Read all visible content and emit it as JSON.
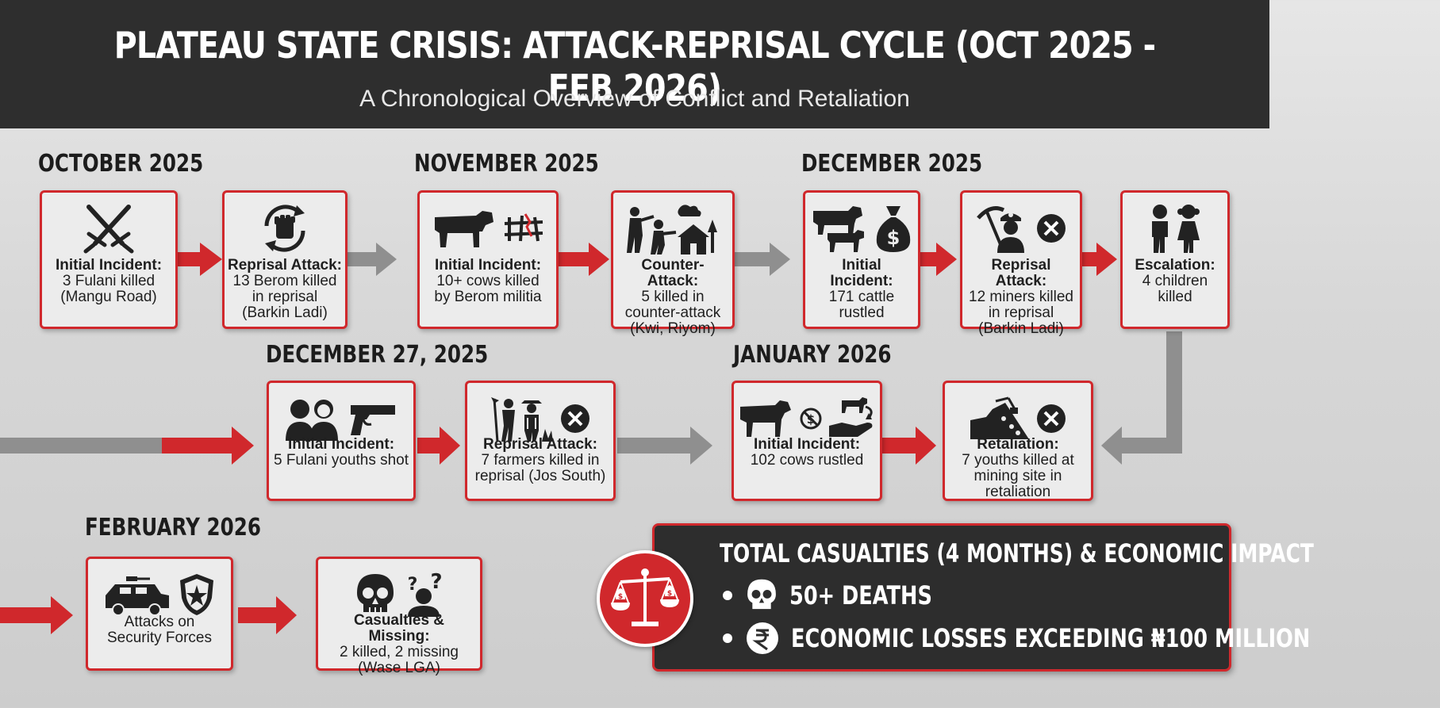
{
  "header": {
    "title": "PLATEAU STATE CRISIS: ATTACK-REPRISAL CYCLE (OCT 2025 - FEB 2026)",
    "subtitle": "A Chronological Overview of Conflict and Retaliation"
  },
  "months": {
    "oct": "OCTOBER 2025",
    "nov": "NOVEMBER 2025",
    "dec": "DECEMBER 2025",
    "dec27": "DECEMBER 27, 2025",
    "jan": "JANUARY 2026",
    "feb": "FEBRUARY 2026"
  },
  "events": {
    "oct_initial": {
      "label": "Initial Incident:",
      "desc": "3 Fulani killed\n(Mangu Road)",
      "icons": [
        "crossed-swords-icon"
      ]
    },
    "oct_reprisal": {
      "label": "Reprisal Attack:",
      "desc": "13 Berom killed\nin reprisal\n(Barkin Ladi)",
      "icons": [
        "fist-cycle-icon"
      ]
    },
    "nov_initial": {
      "label": "Initial Incident:",
      "desc": "10+ cows killed\nby Berom militia",
      "icons": [
        "cow-icon",
        "broken-fence-icon"
      ]
    },
    "nov_counter": {
      "label": "Counter-Attack:",
      "desc": "5 killed in\ncounter-attack\n(Kwi, Riyom)",
      "icons": [
        "gunmen-village-icon"
      ]
    },
    "dec_initial": {
      "label": "Initial Incident:",
      "desc": "171 cattle\nrustled",
      "icons": [
        "cattle-icon",
        "money-bag-icon"
      ]
    },
    "dec_reprisal": {
      "label": "Reprisal Attack:",
      "desc": "12 miners killed\nin reprisal\n(Barkin Ladi)",
      "icons": [
        "miner-icon",
        "cross-icon"
      ]
    },
    "dec_escalation": {
      "label": "Escalation:",
      "desc": "4 children\nkilled",
      "icons": [
        "children-icon"
      ]
    },
    "dec27_initial": {
      "label": "Initial Incident:",
      "desc": "5 Fulani youths shot",
      "icons": [
        "youths-icon",
        "handgun-icon"
      ]
    },
    "dec27_reprisal": {
      "label": "Reprisal Attack:",
      "desc": "7 farmers killed in\nreprisal (Jos South)",
      "icons": [
        "farmers-icon",
        "cross-icon"
      ]
    },
    "jan_initial": {
      "label": "Initial Incident:",
      "desc": "102 cows rustled",
      "icons": [
        "cow-icon",
        "no-money-icon",
        "hand-cow-icon"
      ]
    },
    "jan_retaliation": {
      "label": "Retaliation:",
      "desc": "7 youths killed at\nmining site in\nretaliation",
      "icons": [
        "mining-site-icon",
        "cross-icon"
      ]
    },
    "feb_attacks": {
      "label": "",
      "desc": "Attacks on\nSecurity Forces",
      "icons": [
        "armored-vehicle-icon",
        "police-shield-icon"
      ]
    },
    "feb_casualties": {
      "label": "Casualties & Missing:",
      "desc": "2 killed, 2 missing\n(Wase LGA)",
      "icons": [
        "skull-icon",
        "missing-person-icon"
      ]
    }
  },
  "summary": {
    "title": "TOTAL CASUALTIES (4 MONTHS) & ECONOMIC IMPACT",
    "deaths": "50+ DEATHS",
    "losses": "ECONOMIC LOSSES EXCEEDING ₦100 MILLION",
    "icon": "scales-money-icon"
  },
  "colors": {
    "header_bg": "#2e2e2e",
    "accent_red": "#d0282c",
    "connector_grey": "#8f8f8f",
    "summary_bg": "#2d2d2d"
  }
}
